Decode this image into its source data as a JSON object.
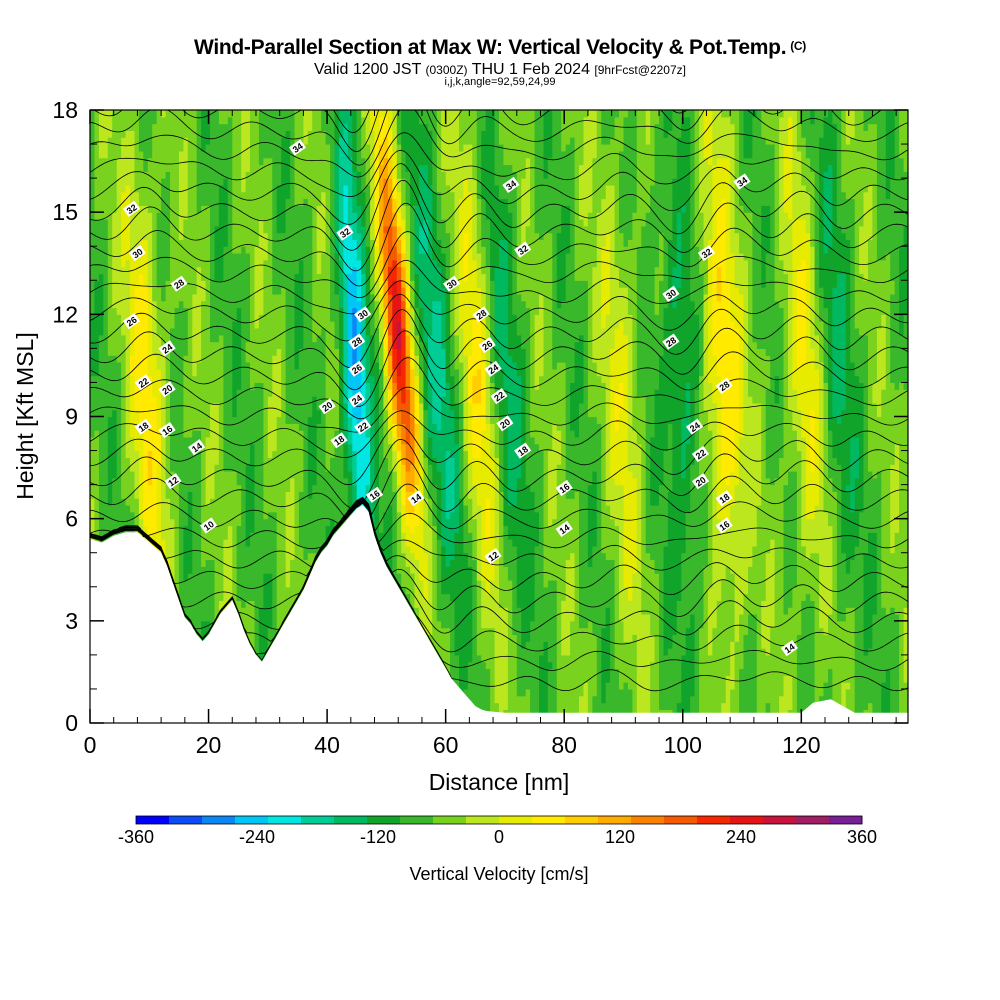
{
  "header": {
    "title": "Wind-Parallel Section at Max W: Vertical Velocity & Pot.Temp.",
    "copyright": "(C)",
    "valid_prefix": "Valid 1200 JST",
    "valid_utc": "(0300Z)",
    "valid_date": "THU 1 Feb 2024",
    "forecast": "[9hrFcst@2207z]",
    "indices": "i,j,k,angle=92,59,24,99"
  },
  "chart_data": {
    "type": "heatmap",
    "title": "Wind-Parallel Section at Max W: Vertical Velocity & Pot.Temp.",
    "xlabel": "Distance [nm]",
    "ylabel": "Height [Kft MSL]",
    "xlim": [
      0,
      138
    ],
    "ylim": [
      0,
      18
    ],
    "x_ticks": [
      "0",
      "20",
      "40",
      "60",
      "80",
      "100",
      "120"
    ],
    "y_ticks": [
      "0",
      "3",
      "6",
      "9",
      "12",
      "15",
      "18"
    ],
    "grid": false,
    "colorbar": {
      "label": "Vertical Velocity [cm/s]",
      "tick_labels": [
        "-360",
        "-240",
        "-120",
        "0",
        "120",
        "240",
        "360"
      ],
      "min": -360,
      "max": 360,
      "step": 40,
      "colors": [
        "#0000ff",
        "#0a4cf5",
        "#0a86f5",
        "#00c6f5",
        "#00e6e0",
        "#00cc96",
        "#00b860",
        "#10a52a",
        "#38b82a",
        "#78d21e",
        "#bce61e",
        "#e6eb00",
        "#ffea00",
        "#ffcd00",
        "#ffab00",
        "#fa8200",
        "#f55a00",
        "#f52800",
        "#e61414",
        "#c8143c",
        "#a01e64",
        "#781e96"
      ]
    },
    "terrain_kft": [
      [
        0,
        5.4
      ],
      [
        2,
        5.3
      ],
      [
        4,
        5.5
      ],
      [
        6,
        5.6
      ],
      [
        8,
        5.6
      ],
      [
        10,
        5.3
      ],
      [
        12,
        5.0
      ],
      [
        13,
        4.6
      ],
      [
        14,
        4.1
      ],
      [
        15,
        3.6
      ],
      [
        16,
        3.1
      ],
      [
        17,
        2.9
      ],
      [
        18,
        2.6
      ],
      [
        19,
        2.4
      ],
      [
        20,
        2.6
      ],
      [
        21,
        2.9
      ],
      [
        22,
        3.2
      ],
      [
        23,
        3.4
      ],
      [
        24,
        3.6
      ],
      [
        25,
        3.2
      ],
      [
        26,
        2.7
      ],
      [
        27,
        2.3
      ],
      [
        28,
        2.0
      ],
      [
        29,
        1.8
      ],
      [
        30,
        2.1
      ],
      [
        31,
        2.4
      ],
      [
        32,
        2.7
      ],
      [
        33,
        3.0
      ],
      [
        34,
        3.3
      ],
      [
        35,
        3.6
      ],
      [
        36,
        3.9
      ],
      [
        37,
        4.3
      ],
      [
        38,
        4.7
      ],
      [
        39,
        5.0
      ],
      [
        40,
        5.2
      ],
      [
        41,
        5.5
      ],
      [
        42,
        5.7
      ],
      [
        43,
        5.9
      ],
      [
        44,
        6.1
      ],
      [
        45,
        6.3
      ],
      [
        46,
        6.4
      ],
      [
        47,
        6.2
      ],
      [
        48,
        5.5
      ],
      [
        49,
        5.0
      ],
      [
        50,
        4.6
      ],
      [
        51,
        4.3
      ],
      [
        52,
        4.0
      ],
      [
        53,
        3.7
      ],
      [
        54,
        3.4
      ],
      [
        55,
        3.1
      ],
      [
        56,
        2.8
      ],
      [
        57,
        2.5
      ],
      [
        58,
        2.2
      ],
      [
        59,
        1.9
      ],
      [
        60,
        1.6
      ],
      [
        61,
        1.3
      ],
      [
        62,
        1.1
      ],
      [
        63,
        0.9
      ],
      [
        64,
        0.7
      ],
      [
        65,
        0.5
      ],
      [
        66,
        0.4
      ],
      [
        67,
        0.35
      ],
      [
        70,
        0.3
      ],
      [
        80,
        0.3
      ],
      [
        90,
        0.3
      ],
      [
        100,
        0.3
      ],
      [
        110,
        0.3
      ],
      [
        120,
        0.3
      ],
      [
        122,
        0.6
      ],
      [
        125,
        0.7
      ],
      [
        127,
        0.5
      ],
      [
        129,
        0.3
      ],
      [
        132,
        0.3
      ],
      [
        138,
        0.3
      ]
    ],
    "updraft_cores": [
      {
        "x": 10,
        "peak_cm_s": 130
      },
      {
        "x": 53,
        "peak_cm_s": 360
      },
      {
        "x": 66,
        "peak_cm_s": 130
      },
      {
        "x": 90,
        "peak_cm_s": 80
      },
      {
        "x": 107,
        "peak_cm_s": 170
      },
      {
        "x": 121,
        "peak_cm_s": 110
      }
    ],
    "downdraft_cores": [
      {
        "x": 45,
        "peak_cm_s": -240
      },
      {
        "x": 59,
        "peak_cm_s": -110
      },
      {
        "x": 70,
        "peak_cm_s": -90
      },
      {
        "x": 100,
        "peak_cm_s": -110
      },
      {
        "x": 126,
        "peak_cm_s": -80
      }
    ],
    "contours": {
      "field": "Potential Temperature",
      "labels": [
        {
          "text": "34",
          "x": 35,
          "y": 16.9
        },
        {
          "text": "34",
          "x": 71,
          "y": 15.8
        },
        {
          "text": "34",
          "x": 110,
          "y": 15.9
        },
        {
          "text": "32",
          "x": 7,
          "y": 15.1
        },
        {
          "text": "32",
          "x": 43,
          "y": 14.4
        },
        {
          "text": "32",
          "x": 73,
          "y": 13.9
        },
        {
          "text": "32",
          "x": 104,
          "y": 13.8
        },
        {
          "text": "30",
          "x": 8,
          "y": 13.8
        },
        {
          "text": "30",
          "x": 46,
          "y": 12.0
        },
        {
          "text": "30",
          "x": 61,
          "y": 12.9
        },
        {
          "text": "30",
          "x": 98,
          "y": 12.6
        },
        {
          "text": "28",
          "x": 15,
          "y": 12.9
        },
        {
          "text": "28",
          "x": 45,
          "y": 11.2
        },
        {
          "text": "28",
          "x": 66,
          "y": 12.0
        },
        {
          "text": "28",
          "x": 98,
          "y": 11.2
        },
        {
          "text": "28",
          "x": 107,
          "y": 9.9
        },
        {
          "text": "26",
          "x": 7,
          "y": 11.8
        },
        {
          "text": "26",
          "x": 45,
          "y": 10.4
        },
        {
          "text": "26",
          "x": 67,
          "y": 11.1
        },
        {
          "text": "24",
          "x": 13,
          "y": 11.0
        },
        {
          "text": "24",
          "x": 45,
          "y": 9.5
        },
        {
          "text": "24",
          "x": 68,
          "y": 10.4
        },
        {
          "text": "24",
          "x": 102,
          "y": 8.7
        },
        {
          "text": "22",
          "x": 9,
          "y": 10.0
        },
        {
          "text": "22",
          "x": 46,
          "y": 8.7
        },
        {
          "text": "22",
          "x": 69,
          "y": 9.6
        },
        {
          "text": "22",
          "x": 103,
          "y": 7.9
        },
        {
          "text": "20",
          "x": 13,
          "y": 9.8
        },
        {
          "text": "20",
          "x": 40,
          "y": 9.3
        },
        {
          "text": "20",
          "x": 70,
          "y": 8.8
        },
        {
          "text": "20",
          "x": 103,
          "y": 7.1
        },
        {
          "text": "18",
          "x": 9,
          "y": 8.7
        },
        {
          "text": "18",
          "x": 42,
          "y": 8.3
        },
        {
          "text": "18",
          "x": 73,
          "y": 8.0
        },
        {
          "text": "18",
          "x": 107,
          "y": 6.6
        },
        {
          "text": "16",
          "x": 13,
          "y": 8.6
        },
        {
          "text": "16",
          "x": 48,
          "y": 6.7
        },
        {
          "text": "16",
          "x": 80,
          "y": 6.9
        },
        {
          "text": "16",
          "x": 107,
          "y": 5.8
        },
        {
          "text": "14",
          "x": 18,
          "y": 8.1
        },
        {
          "text": "14",
          "x": 55,
          "y": 6.6
        },
        {
          "text": "14",
          "x": 80,
          "y": 5.7
        },
        {
          "text": "14",
          "x": 118,
          "y": 2.2
        },
        {
          "text": "12",
          "x": 14,
          "y": 7.1
        },
        {
          "text": "12",
          "x": 68,
          "y": 4.9
        },
        {
          "text": "10",
          "x": 20,
          "y": 5.8
        }
      ]
    }
  }
}
